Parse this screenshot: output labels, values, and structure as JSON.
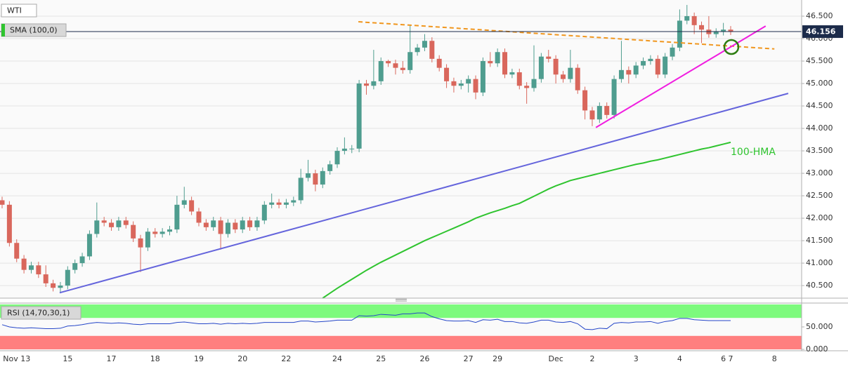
{
  "chart_data": {
    "type": "candlestick",
    "title": "WTI",
    "indicator": "SMA (100,0)",
    "up_color": "#4f9d8f",
    "down_color": "#d9675c",
    "grid": true,
    "categories": [
      null,
      null,
      "Nov 13",
      null,
      null,
      null,
      null,
      null,
      null,
      "15",
      null,
      null,
      null,
      null,
      null,
      "17",
      null,
      null,
      null,
      null,
      null,
      "18",
      null,
      null,
      null,
      null,
      null,
      "19",
      null,
      null,
      null,
      null,
      null,
      "20",
      null,
      null,
      null,
      null,
      null,
      "22",
      null,
      null,
      null,
      null,
      null,
      null,
      "24",
      null,
      null,
      null,
      null,
      null,
      "25",
      null,
      null,
      null,
      null,
      null,
      "26",
      null,
      null,
      null,
      null,
      null,
      "27",
      null,
      null,
      null,
      "29",
      null,
      null,
      null,
      null,
      null,
      null,
      null,
      "Dec",
      null,
      null,
      null,
      null,
      "2",
      null,
      null,
      null,
      null,
      null,
      "3",
      null,
      null,
      null,
      null,
      null,
      "4",
      null,
      null,
      null,
      null,
      null,
      "6",
      "7",
      null,
      null,
      null,
      null,
      null,
      "8"
    ],
    "open": [
      42.4,
      42.3,
      41.45,
      41.1,
      40.85,
      40.95,
      40.75,
      40.55,
      40.45,
      40.5,
      40.85,
      41.0,
      41.15,
      41.65,
      41.95,
      41.9,
      41.8,
      41.95,
      41.85,
      41.55,
      41.35,
      41.7,
      41.65,
      41.7,
      41.75,
      42.3,
      42.4,
      42.15,
      41.9,
      41.8,
      41.95,
      41.65,
      41.9,
      41.75,
      41.95,
      41.8,
      41.95,
      42.3,
      42.35,
      42.3,
      42.35,
      42.4,
      42.9,
      43.0,
      42.75,
      43.05,
      43.2,
      43.5,
      43.55,
      43.55,
      45.0,
      44.95,
      45.05,
      45.5,
      45.45,
      45.35,
      45.3,
      45.7,
      45.8,
      45.95,
      45.55,
      45.35,
      45.05,
      44.95,
      45.0,
      45.1,
      44.8,
      45.5,
      45.45,
      45.7,
      45.2,
      45.25,
      44.95,
      44.9,
      45.1,
      45.6,
      45.55,
      45.2,
      45.1,
      45.35,
      44.85,
      44.4,
      44.2,
      44.5,
      44.3,
      45.1,
      45.3,
      45.2,
      45.4,
      45.5,
      45.55,
      45.2,
      45.6,
      45.8,
      46.4,
      46.5,
      46.3,
      46.2,
      46.1,
      46.15,
      46.2,
      null,
      null,
      null,
      null,
      null,
      null
    ],
    "high": [
      42.48,
      42.38,
      41.53,
      41.18,
      41.03,
      41.03,
      40.95,
      40.63,
      40.58,
      40.93,
      41.08,
      41.23,
      41.73,
      42.35,
      42.03,
      41.98,
      42.03,
      42.03,
      41.93,
      41.63,
      41.78,
      41.78,
      41.78,
      41.83,
      42.5,
      42.7,
      42.48,
      42.23,
      41.98,
      42.03,
      42.03,
      41.98,
      41.98,
      42.03,
      42.03,
      42.03,
      42.38,
      42.55,
      42.43,
      42.43,
      42.48,
      43.1,
      43.3,
      43.08,
      43.13,
      43.28,
      43.58,
      43.8,
      43.63,
      45.08,
      45.08,
      45.75,
      45.58,
      45.53,
      45.53,
      45.5,
      46.3,
      45.88,
      46.1,
      46.03,
      45.63,
      45.43,
      45.13,
      45.08,
      45.18,
      45.18,
      45.58,
      45.7,
      45.78,
      45.78,
      45.33,
      45.33,
      45.03,
      45.85,
      45.68,
      45.75,
      45.63,
      45.28,
      45.75,
      45.43,
      44.93,
      44.48,
      44.58,
      44.58,
      45.18,
      45.95,
      45.38,
      45.48,
      45.58,
      45.63,
      45.63,
      45.68,
      45.88,
      46.65,
      46.75,
      46.58,
      46.38,
      46.5,
      46.23,
      46.35,
      46.28,
      null,
      null,
      null,
      null,
      null,
      null
    ],
    "low": [
      42.22,
      41.37,
      41.02,
      40.77,
      40.77,
      40.67,
      40.47,
      40.37,
      40.35,
      40.42,
      40.77,
      40.92,
      41.07,
      41.57,
      41.82,
      41.72,
      41.72,
      41.77,
      41.47,
      40.8,
      41.27,
      41.57,
      41.57,
      41.62,
      41.67,
      42.22,
      42.07,
      41.82,
      41.72,
      41.72,
      41.3,
      41.57,
      41.67,
      41.67,
      41.72,
      41.72,
      41.87,
      42.22,
      42.22,
      42.22,
      42.27,
      42.32,
      42.82,
      42.6,
      42.67,
      42.97,
      43.12,
      43.42,
      43.45,
      43.47,
      44.75,
      44.87,
      44.97,
      45.37,
      45.2,
      45.22,
      45.22,
      45.62,
      45.72,
      45.47,
      45.27,
      44.9,
      44.8,
      44.87,
      44.8,
      44.65,
      44.72,
      45.37,
      45.37,
      45.12,
      45.12,
      44.87,
      44.55,
      44.82,
      45.02,
      45.47,
      45.0,
      45.02,
      45.02,
      44.77,
      44.2,
      44.05,
      44.12,
      44.22,
      44.22,
      45.02,
      45.0,
      45.12,
      45.32,
      45.42,
      45.12,
      45.12,
      45.52,
      45.72,
      46.32,
      46.1,
      45.9,
      46.02,
      46.02,
      46.07,
      46.08,
      null,
      null,
      null,
      null,
      null,
      null
    ],
    "close": [
      42.3,
      41.45,
      41.1,
      40.85,
      40.95,
      40.75,
      40.55,
      40.45,
      40.5,
      40.85,
      41.0,
      41.15,
      41.65,
      41.95,
      41.9,
      41.8,
      41.95,
      41.85,
      41.55,
      41.35,
      41.7,
      41.65,
      41.7,
      41.75,
      42.3,
      42.4,
      42.15,
      41.9,
      41.8,
      41.95,
      41.65,
      41.9,
      41.75,
      41.95,
      41.8,
      41.95,
      42.3,
      42.35,
      42.3,
      42.35,
      42.4,
      42.9,
      43.0,
      42.75,
      43.05,
      43.2,
      43.5,
      43.55,
      43.55,
      45.0,
      44.95,
      45.05,
      45.5,
      45.45,
      45.35,
      45.3,
      45.7,
      45.8,
      45.95,
      45.55,
      45.35,
      45.05,
      44.95,
      45.0,
      45.1,
      44.8,
      45.5,
      45.45,
      45.7,
      45.2,
      45.25,
      44.95,
      44.9,
      45.1,
      45.6,
      45.55,
      45.2,
      45.1,
      45.35,
      44.85,
      44.4,
      44.2,
      44.5,
      44.3,
      45.1,
      45.3,
      45.2,
      45.4,
      45.5,
      45.55,
      45.2,
      45.6,
      45.8,
      46.4,
      46.5,
      46.3,
      46.2,
      46.1,
      46.15,
      46.2,
      46.156,
      null,
      null,
      null,
      null,
      null,
      null
    ],
    "ylim": [
      40.22,
      46.86
    ],
    "yticks": [
      {
        "value": 40.5,
        "label": "40.500"
      },
      {
        "value": 41,
        "label": "41.000"
      },
      {
        "value": 41.5,
        "label": "41.500"
      },
      {
        "value": 42,
        "label": "42.000"
      },
      {
        "value": 42.5,
        "label": "42.500"
      },
      {
        "value": 43,
        "label": "43.000"
      },
      {
        "value": 43.5,
        "label": "43.500"
      },
      {
        "value": 44,
        "label": "44.000"
      },
      {
        "value": 44.5,
        "label": "44.500"
      },
      {
        "value": 45,
        "label": "45.000"
      },
      {
        "value": 45.5,
        "label": "45.500"
      },
      {
        "value": 46,
        "label": "46.000"
      },
      {
        "value": 46.5,
        "label": "46.500"
      }
    ],
    "last_price": {
      "value": 46.156,
      "label": "46.156",
      "color": "#1c2b4a"
    },
    "hma": {
      "name": "100-HMA",
      "color": "#2fc42f",
      "values": [
        null,
        null,
        null,
        null,
        null,
        null,
        null,
        null,
        null,
        null,
        null,
        null,
        null,
        null,
        null,
        null,
        null,
        null,
        null,
        null,
        null,
        null,
        null,
        null,
        null,
        null,
        null,
        null,
        null,
        null,
        null,
        null,
        null,
        null,
        null,
        null,
        null,
        null,
        null,
        null,
        null,
        null,
        null,
        null,
        40.22,
        40.33,
        40.44,
        40.54,
        40.64,
        40.74,
        40.84,
        40.93,
        41.02,
        41.1,
        41.18,
        41.26,
        41.34,
        41.42,
        41.5,
        41.57,
        41.64,
        41.71,
        41.78,
        41.85,
        41.92,
        42.0,
        42.06,
        42.12,
        42.17,
        42.22,
        42.28,
        42.33,
        42.41,
        42.49,
        42.57,
        42.65,
        42.72,
        42.78,
        42.84,
        42.88,
        42.92,
        42.96,
        43.0,
        43.04,
        43.08,
        43.12,
        43.16,
        43.2,
        43.23,
        43.27,
        43.3,
        43.34,
        43.38,
        43.42,
        43.46,
        43.5,
        43.54,
        43.57,
        43.61,
        43.65,
        43.69,
        null,
        null,
        null,
        null,
        null,
        null
      ]
    },
    "trendlines": [
      {
        "color": "#f0961e",
        "dashed": true,
        "x": [
          48.9,
          106
        ],
        "y": [
          46.375,
          45.77
        ]
      },
      {
        "color": "#6464dc",
        "dashed": false,
        "x": [
          7.9,
          107.9
        ],
        "y": [
          40.34,
          44.78
        ]
      },
      {
        "color": "#f01ee0",
        "dashed": false,
        "x": [
          81.5,
          104.8
        ],
        "y": [
          44.02,
          46.28
        ]
      }
    ],
    "rsi": {
      "title": "RSI (14,70,30,1)",
      "color": "#2546c8",
      "ylim": [
        -3.1,
        103.1
      ],
      "yticks": [
        {
          "value": 0,
          "label": "0.000"
        },
        {
          "value": 50,
          "label": "50.000"
        }
      ],
      "overbought": [
        70,
        100
      ],
      "overbought_color": "#7dfa7d",
      "oversold": [
        0,
        30
      ],
      "oversold_color": "#ff7f7f",
      "values": [
        55,
        50,
        48,
        47,
        48,
        47,
        46,
        46,
        47,
        52,
        53,
        55,
        58,
        60,
        59,
        58,
        59,
        58,
        56,
        55,
        57,
        57,
        57,
        57,
        60,
        61,
        59,
        57,
        57,
        58,
        56,
        58,
        57,
        58,
        57,
        58,
        60,
        60,
        60,
        60,
        60,
        63,
        63,
        61,
        62,
        63,
        65,
        65,
        65,
        75,
        74,
        75,
        78,
        77,
        76,
        79,
        79,
        81,
        81,
        73,
        68,
        64,
        63,
        63,
        64,
        60,
        66,
        65,
        67,
        62,
        62,
        59,
        58,
        61,
        65,
        65,
        61,
        60,
        62,
        57,
        45,
        44,
        47,
        46,
        58,
        60,
        59,
        61,
        61,
        62,
        58,
        62,
        64,
        69,
        69,
        66,
        65,
        64,
        64,
        64,
        64,
        null,
        null,
        null,
        null,
        null,
        null
      ]
    }
  }
}
